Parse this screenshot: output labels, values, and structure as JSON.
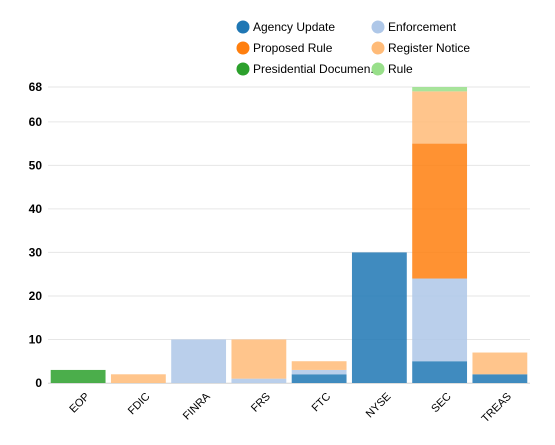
{
  "chart_data": {
    "type": "bar",
    "stacked": true,
    "categories": [
      "EOP",
      "FDIC",
      "FINRA",
      "FRS",
      "FTC",
      "NYSE",
      "SEC",
      "TREAS"
    ],
    "ylim": [
      0,
      68
    ],
    "yticks": [
      0,
      10,
      20,
      30,
      40,
      50,
      60,
      68
    ],
    "grid": true,
    "legend_position": "top-right",
    "series": [
      {
        "name": "Agency Update",
        "color": "#1f77b4",
        "values": [
          0,
          0,
          0,
          0,
          2,
          30,
          5,
          2
        ]
      },
      {
        "name": "Enforcement",
        "color": "#aec7e8",
        "values": [
          0,
          0,
          10,
          1,
          1,
          0,
          19,
          0
        ]
      },
      {
        "name": "Proposed Rule",
        "color": "#ff7f0e",
        "values": [
          0,
          0,
          0,
          0,
          0,
          0,
          31,
          0
        ]
      },
      {
        "name": "Register Notice",
        "color": "#ffbb78",
        "values": [
          0,
          2,
          0,
          9,
          2,
          0,
          12,
          5
        ]
      },
      {
        "name": "Presidential Documen...",
        "color": "#2ca02c",
        "values": [
          3,
          0,
          0,
          0,
          0,
          0,
          0,
          0
        ]
      },
      {
        "name": "Rule",
        "color": "#98df8a",
        "values": [
          0,
          0,
          0,
          0,
          0,
          0,
          1,
          0
        ]
      }
    ]
  }
}
